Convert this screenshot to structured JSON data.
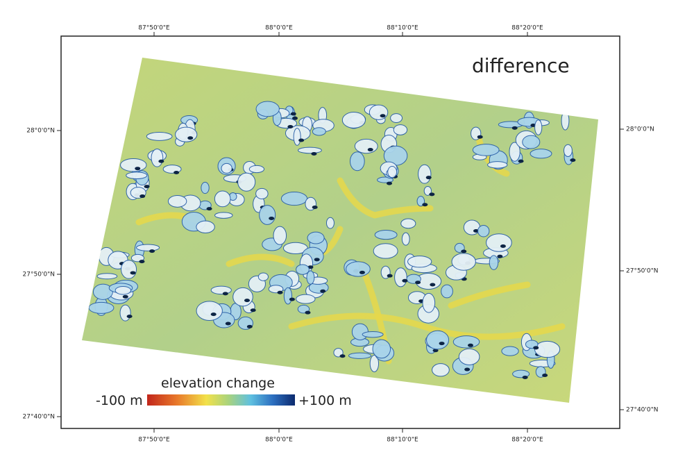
{
  "map": {
    "title": "difference",
    "legend": {
      "title": "elevation change",
      "min_label": "-100 m",
      "max_label": "+100 m"
    },
    "top_labels": [
      "87°50'0\"E",
      "88°0'0\"E",
      "88°10'0\"E",
      "88°20'0\"E"
    ],
    "bottom_labels": [
      "87°50'0\"E",
      "88°0'0\"E",
      "88°10'0\"E",
      "88°20'0\"E"
    ],
    "left_labels": [
      "28°0'0\"N",
      "27°50'0\"N",
      "27°40'0\"N"
    ],
    "right_labels": [
      "28°0'0\"N",
      "27°50'0\"N",
      "27°40'0\"N"
    ]
  }
}
